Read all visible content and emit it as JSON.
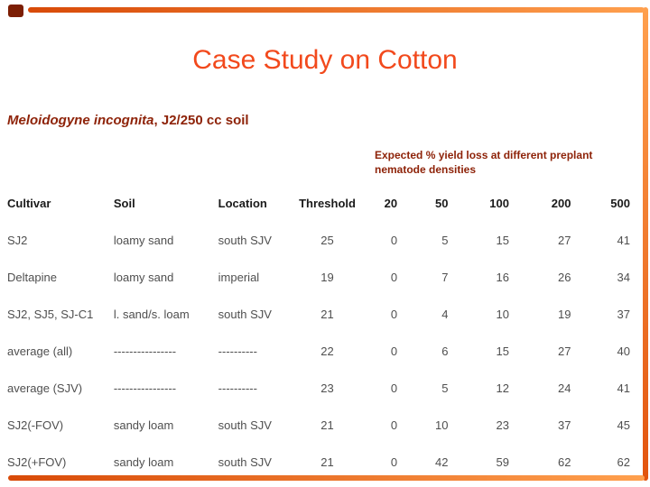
{
  "colors": {
    "title_text": "#f2491c",
    "accent_dark_red": "#8e2309",
    "frame_bar_dark": "#d84a08",
    "frame_bar_light": "#ffa04e",
    "corner_square": "#7c1e04",
    "table_header_text": "#1a1a1a",
    "table_body_text": "#4f4f4f",
    "background": "#ffffff"
  },
  "header": {
    "title": "Case Study on Cotton"
  },
  "subtitle": {
    "species": "Meloidogyne incognita",
    "rest": ", J2/250 cc soil"
  },
  "note": {
    "line1": "Expected % yield loss at different preplant",
    "line2": "nematode densities"
  },
  "table": {
    "headers": [
      "Cultivar",
      "Soil",
      "Location",
      "Threshold",
      "20",
      "50",
      "100",
      "200",
      "500"
    ],
    "rows": [
      [
        "SJ2",
        "loamy sand",
        "south SJV",
        "25",
        "0",
        "5",
        "15",
        "27",
        "41"
      ],
      [
        "Deltapine",
        "loamy sand",
        "imperial",
        "19",
        "0",
        "7",
        "16",
        "26",
        "34"
      ],
      [
        "SJ2, SJ5, SJ-C1",
        "l. sand/s. loam",
        "south SJV",
        "21",
        "0",
        "4",
        "10",
        "19",
        "37"
      ],
      [
        "average (all)",
        "----------------",
        "----------",
        "22",
        "0",
        "6",
        "15",
        "27",
        "40"
      ],
      [
        "average (SJV)",
        "----------------",
        "----------",
        "23",
        "0",
        "5",
        "12",
        "24",
        "41"
      ],
      [
        "SJ2(-FOV)",
        "sandy loam",
        "south SJV",
        "21",
        "0",
        "10",
        "23",
        "37",
        "45"
      ],
      [
        "SJ2(+FOV)",
        "sandy loam",
        "south SJV",
        "21",
        "0",
        "42",
        "59",
        "62",
        "62"
      ]
    ]
  }
}
